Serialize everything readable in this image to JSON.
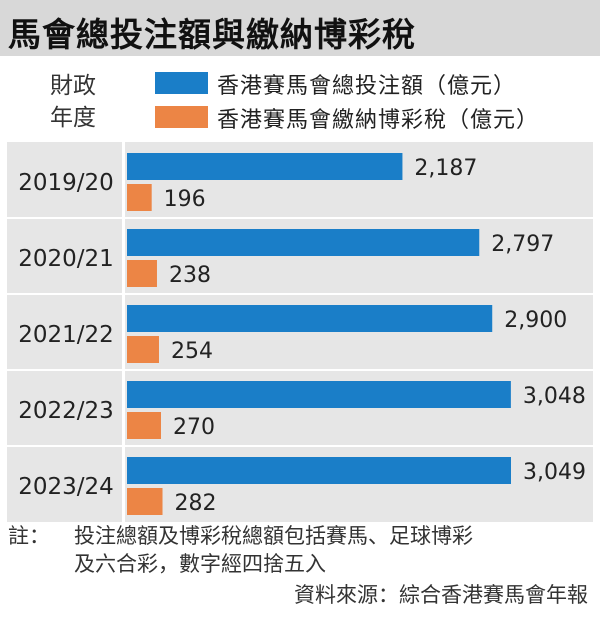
{
  "title": "馬會總投注額與繳納博彩稅",
  "chart_data": {
    "type": "bar",
    "orientation": "horizontal",
    "row_header": "財政\n年度",
    "categories": [
      "2019/20",
      "2020/21",
      "2021/22",
      "2022/23",
      "2023/24"
    ],
    "series": [
      {
        "name": "香港賽馬會總投注額（億元）",
        "color": "#1a7ec8",
        "values": [
          2187,
          2797,
          2900,
          3048,
          3049
        ],
        "labels": [
          "2,187",
          "2,797",
          "2,900",
          "3,048",
          "3,049"
        ]
      },
      {
        "name": "香港賽馬會繳納博彩稅（億元）",
        "color": "#ec8545",
        "values": [
          196,
          238,
          254,
          270,
          282
        ],
        "labels": [
          "196",
          "238",
          "254",
          "270",
          "282"
        ]
      }
    ],
    "xlim": [
      0,
      3049
    ]
  },
  "note": {
    "label": "註：",
    "line1": "投注總額及博彩稅總額包括賽馬、足球博彩",
    "line2": "及六合彩，數字經四捨五入"
  },
  "source": "資料來源：綜合香港賽馬會年報"
}
